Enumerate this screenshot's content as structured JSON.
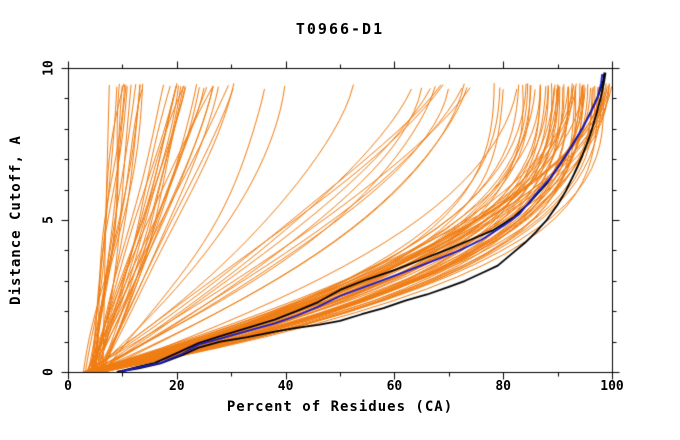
{
  "chart_data": {
    "type": "line",
    "title": "T0966-D1",
    "xlabel": "Percent of Residues (CA)",
    "ylabel": "Distance Cutoff, A",
    "xlim": [
      0,
      100
    ],
    "ylim": [
      0,
      10
    ],
    "grid": false,
    "legend": "none",
    "x_axis": {
      "major_ticks": [
        0,
        20,
        40,
        60,
        80,
        100
      ],
      "major_tick_labels": [
        "0",
        "20",
        "40",
        "60",
        "80",
        "100"
      ],
      "minor_ticks": [
        10,
        30,
        50,
        70,
        90
      ]
    },
    "y_axis": {
      "major_ticks": [
        0,
        5,
        10
      ],
      "major_tick_labels": [
        "0",
        "5",
        "10"
      ],
      "minor_ticks": [
        1,
        2,
        3,
        4,
        6,
        7,
        8,
        9
      ]
    },
    "highlighted_series": [
      {
        "name": "model-black-lower",
        "color": "#000000",
        "width": 1.8,
        "points": [
          [
            9,
            0
          ],
          [
            13,
            0.12
          ],
          [
            17,
            0.28
          ],
          [
            21,
            0.55
          ],
          [
            24,
            0.8
          ],
          [
            28,
            1.0
          ],
          [
            33,
            1.15
          ],
          [
            38,
            1.33
          ],
          [
            42,
            1.45
          ],
          [
            46,
            1.55
          ],
          [
            50,
            1.68
          ],
          [
            54,
            1.9
          ],
          [
            58,
            2.1
          ],
          [
            62,
            2.35
          ],
          [
            66,
            2.55
          ],
          [
            70,
            2.8
          ],
          [
            73,
            3.0
          ],
          [
            76,
            3.25
          ],
          [
            79,
            3.5
          ],
          [
            82,
            3.95
          ],
          [
            84,
            4.25
          ],
          [
            86,
            4.6
          ],
          [
            88,
            5.0
          ],
          [
            90,
            5.5
          ],
          [
            91.5,
            5.95
          ],
          [
            93,
            6.5
          ],
          [
            94.5,
            7.1
          ],
          [
            95.8,
            7.7
          ],
          [
            97,
            8.4
          ],
          [
            97.9,
            9.0
          ],
          [
            98.5,
            9.5
          ],
          [
            98.8,
            9.85
          ]
        ]
      },
      {
        "name": "model-black-upper",
        "color": "#000000",
        "width": 1.8,
        "points": [
          [
            9,
            0
          ],
          [
            13,
            0.18
          ],
          [
            16,
            0.3
          ],
          [
            20,
            0.62
          ],
          [
            24,
            0.95
          ],
          [
            28,
            1.18
          ],
          [
            33,
            1.45
          ],
          [
            38,
            1.72
          ],
          [
            42,
            2.0
          ],
          [
            46,
            2.3
          ],
          [
            50,
            2.7
          ],
          [
            55,
            3.05
          ],
          [
            60,
            3.35
          ],
          [
            65,
            3.7
          ],
          [
            70,
            4.05
          ],
          [
            74,
            4.35
          ],
          [
            78,
            4.65
          ],
          [
            82,
            5.1
          ],
          [
            85,
            5.6
          ],
          [
            88,
            6.2
          ],
          [
            90.5,
            6.85
          ],
          [
            92.5,
            7.4
          ],
          [
            94.5,
            8.0
          ],
          [
            96.2,
            8.6
          ],
          [
            97.5,
            9.1
          ],
          [
            98.4,
            9.6
          ],
          [
            98.6,
            9.85
          ]
        ]
      },
      {
        "name": "model-blue",
        "color": "#1b1bc8",
        "width": 1.8,
        "points": [
          [
            9.5,
            0
          ],
          [
            13,
            0.15
          ],
          [
            17,
            0.3
          ],
          [
            21,
            0.6
          ],
          [
            24,
            0.9
          ],
          [
            28,
            1.1
          ],
          [
            33,
            1.35
          ],
          [
            38,
            1.6
          ],
          [
            42,
            1.85
          ],
          [
            46,
            2.15
          ],
          [
            50,
            2.5
          ],
          [
            56,
            2.9
          ],
          [
            62,
            3.3
          ],
          [
            67,
            3.65
          ],
          [
            72,
            4.0
          ],
          [
            76,
            4.35
          ],
          [
            80,
            4.8
          ],
          [
            83,
            5.2
          ],
          [
            86,
            5.85
          ],
          [
            88.5,
            6.35
          ],
          [
            90.5,
            6.85
          ],
          [
            92.5,
            7.4
          ],
          [
            94.5,
            8.0
          ],
          [
            96,
            8.5
          ],
          [
            97.3,
            9.0
          ],
          [
            98.0,
            9.5
          ],
          [
            98.2,
            9.8
          ]
        ]
      }
    ],
    "ensemble": {
      "description": "background bundle of server-model GDT curves",
      "color": "#f07d13",
      "width": 1,
      "seed": 7,
      "start_percent_range": [
        2.8,
        6.5
      ],
      "end_cutoff_range": [
        9.68,
        9.9
      ],
      "jitter_percent": 1.6,
      "clusters": [
        {
          "count": 36,
          "top_percent_range": [
            7.5,
            33
          ],
          "shape_exponent_range": [
            0.85,
            1.35
          ],
          "bias": 1.15
        },
        {
          "count": 14,
          "top_percent_range": [
            34,
            77
          ],
          "shape_exponent_range": [
            1.2,
            1.9
          ],
          "bias": 1.0
        },
        {
          "count": 62,
          "top_percent_range": [
            78,
            100.5
          ],
          "shape_exponent_range": [
            1.9,
            3.3
          ],
          "bias": 0.55
        }
      ]
    },
    "frame_color": "#000000",
    "background_color": "#ffffff"
  }
}
